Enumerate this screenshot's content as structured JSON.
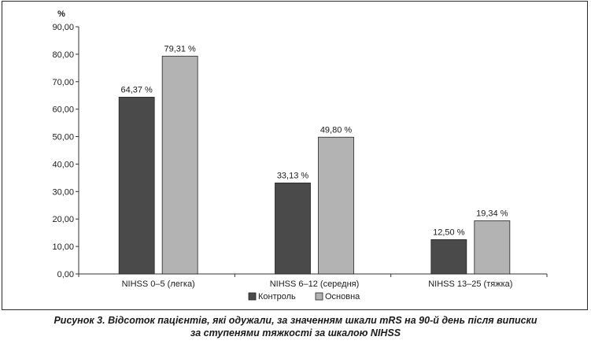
{
  "chart_data": {
    "type": "bar",
    "ylabel": "%",
    "ylim": [
      0,
      90
    ],
    "yticks": [
      "0,00",
      "10,00",
      "20,00",
      "30,00",
      "40,00",
      "50,00",
      "60,00",
      "70,00",
      "80,00",
      "90,00"
    ],
    "categories": [
      "NIHSS 0–5 (легка)",
      "NIHSS 6–12 (середня)",
      "NIHSS 13–25 (тяжка)"
    ],
    "series": [
      {
        "name": "Контроль",
        "color": "#4a4a4a",
        "values": [
          64.37,
          33.13,
          12.5
        ],
        "labels": [
          "64,37 %",
          "33,13 %",
          "12,50 %"
        ]
      },
      {
        "name": "Основна",
        "color": "#b3b3b3",
        "values": [
          79.31,
          49.8,
          19.34
        ],
        "labels": [
          "79,31 %",
          "49,80 %",
          "19,34 %"
        ]
      }
    ],
    "legend_position": "bottom",
    "grid": false
  },
  "caption": {
    "line1": "Рисунок 3. Відсоток пацієнтів, які одужали, за значенням шкали mRS на 90-й день після виписки",
    "line2": "за ступенями тяжкості за шкалою NIHSS"
  }
}
